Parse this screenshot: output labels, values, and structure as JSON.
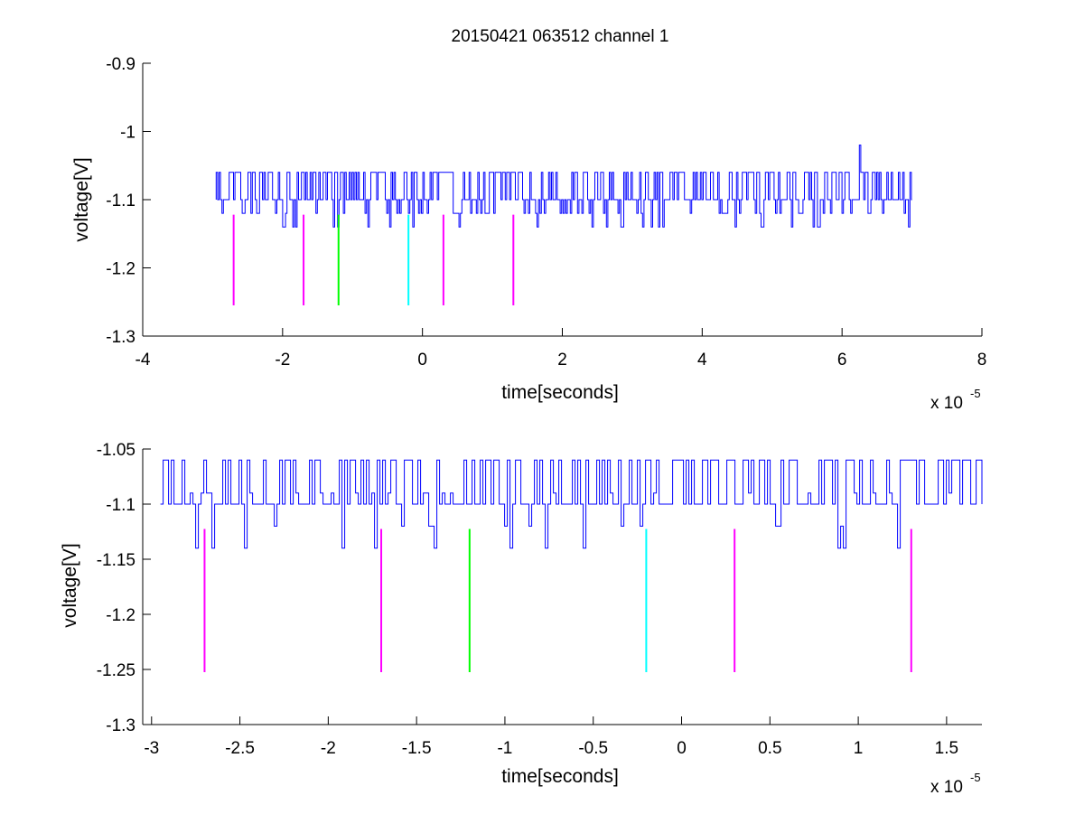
{
  "figure_title": "20150421 063512 channel 1",
  "colors": {
    "signal": "#0000ff",
    "magenta": "#ff00ff",
    "green": "#00ff00",
    "cyan": "#00ffff",
    "axis": "#000000"
  },
  "chart_data": [
    {
      "type": "line",
      "name": "top-panel",
      "title": "20150421 063512 channel 1",
      "xlabel": "time[seconds]",
      "ylabel": "voltage[V]",
      "xlim": [
        -4,
        8
      ],
      "ylim": [
        -1.3,
        -0.9
      ],
      "xticks": [
        -4,
        -2,
        0,
        2,
        4,
        6,
        8
      ],
      "xtick_labels": [
        "-4",
        "-2",
        "0",
        "2",
        "4",
        "6",
        "8"
      ],
      "yticks": [
        -1.3,
        -1.2,
        -1.1,
        -1.0,
        -0.9
      ],
      "ytick_labels": [
        "-1.3",
        "-1.2",
        "-1.1",
        "-1",
        "-0.9"
      ],
      "x_multiplier": "x 10",
      "x_exponent": "-5",
      "grid": false,
      "signal": {
        "x_range": [
          -2.95,
          7.0
        ],
        "baseline": -1.1,
        "high_level": -1.06,
        "low_level": -1.14,
        "spike": {
          "x": 6.25,
          "y": -1.02
        }
      },
      "markers": [
        {
          "x": -2.7,
          "y_range": [
            -1.255,
            -1.122
          ],
          "color": "magenta"
        },
        {
          "x": -1.7,
          "y_range": [
            -1.255,
            -1.122
          ],
          "color": "magenta"
        },
        {
          "x": -1.2,
          "y_range": [
            -1.255,
            -1.122
          ],
          "color": "green"
        },
        {
          "x": -0.2,
          "y_range": [
            -1.255,
            -1.122
          ],
          "color": "cyan"
        },
        {
          "x": 0.3,
          "y_range": [
            -1.255,
            -1.122
          ],
          "color": "magenta"
        },
        {
          "x": 1.3,
          "y_range": [
            -1.255,
            -1.122
          ],
          "color": "magenta"
        }
      ]
    },
    {
      "type": "line",
      "name": "bottom-panel",
      "title": "",
      "xlabel": "time[seconds]",
      "ylabel": "voltage[V]",
      "xlim": [
        -3.05,
        1.7
      ],
      "ylim": [
        -1.3,
        -1.05
      ],
      "xticks": [
        -3,
        -2.5,
        -2,
        -1.5,
        -1,
        -0.5,
        0,
        0.5,
        1,
        1.5
      ],
      "xtick_labels": [
        "-3",
        "-2.5",
        "-2",
        "-1.5",
        "-1",
        "-0.5",
        "0",
        "0.5",
        "1",
        "1.5"
      ],
      "yticks": [
        -1.3,
        -1.25,
        -1.2,
        -1.15,
        -1.1,
        -1.05
      ],
      "ytick_labels": [
        "-1.3",
        "-1.25",
        "-1.2",
        "-1.15",
        "-1.1",
        "-1.05"
      ],
      "x_multiplier": "x 10",
      "x_exponent": "-5",
      "grid": false,
      "signal": {
        "x_range": [
          -2.95,
          1.7
        ],
        "baseline": -1.1,
        "high_level": -1.06,
        "mid_level": -1.09,
        "low_level": -1.14
      },
      "markers": [
        {
          "x": -2.7,
          "y_range": [
            -1.2525,
            -1.1225
          ],
          "color": "magenta"
        },
        {
          "x": -1.7,
          "y_range": [
            -1.2525,
            -1.1225
          ],
          "color": "magenta"
        },
        {
          "x": -1.2,
          "y_range": [
            -1.2525,
            -1.1225
          ],
          "color": "green"
        },
        {
          "x": -0.2,
          "y_range": [
            -1.2525,
            -1.1225
          ],
          "color": "cyan"
        },
        {
          "x": 0.3,
          "y_range": [
            -1.2525,
            -1.1225
          ],
          "color": "magenta"
        },
        {
          "x": 1.3,
          "y_range": [
            -1.2525,
            -1.1225
          ],
          "color": "magenta"
        }
      ]
    }
  ]
}
